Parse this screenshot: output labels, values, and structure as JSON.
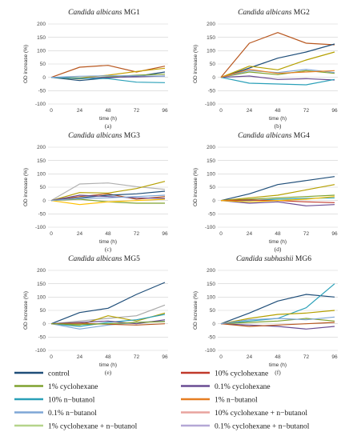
{
  "chart_data": {
    "type": "line",
    "x": [
      0,
      24,
      48,
      72,
      96
    ],
    "xticks": [
      "0",
      "24",
      "48",
      "72",
      "96"
    ],
    "yticks": [
      "200",
      "150",
      "100",
      "50",
      "0",
      "-50",
      "-100"
    ],
    "ylim": [
      -100,
      200
    ],
    "grid": true,
    "legend_position": "bottom",
    "legend": [
      {
        "name": "control",
        "color": "#1f4e79"
      },
      {
        "name": "10% cyclohexane",
        "color": "#c0392b"
      },
      {
        "name": "1% cyclohexane",
        "color": "#7fa22f"
      },
      {
        "name": "0.1% cyclohexane",
        "color": "#6a4c93"
      },
      {
        "name": "10% n−butanol",
        "color": "#2aa0b8"
      },
      {
        "name": "1% n−butanol",
        "color": "#e67e22"
      },
      {
        "name": "0.1% n−butanol",
        "color": "#7ea6d6"
      },
      {
        "name": "10% cyclohexane + n−butanol",
        "color": "#e8a39e"
      },
      {
        "name": "1% cyclohexane + n−butanol",
        "color": "#b5d48a"
      },
      {
        "name": "0.1% cyclohexane + n−butanol",
        "color": "#b4a7d6"
      }
    ],
    "panels": [
      {
        "title_italic": "Candida albicans",
        "title_plain": " MG1",
        "xlabel": "time (h)",
        "ylabel": "OD increase (%)",
        "label": "(a)",
        "series": [
          {
            "color": "#b8571f",
            "values": [
              0,
              38,
              45,
              20,
              42
            ]
          },
          {
            "color": "#c8a000",
            "values": [
              0,
              -2,
              8,
              22,
              34
            ]
          },
          {
            "color": "#1f4e79",
            "values": [
              0,
              -12,
              -2,
              4,
              20
            ]
          },
          {
            "color": "#7fa22f",
            "values": [
              0,
              -6,
              2,
              8,
              12
            ]
          },
          {
            "color": "#6a4c93",
            "values": [
              0,
              -4,
              0,
              2,
              5
            ]
          },
          {
            "color": "#2aa0b8",
            "values": [
              0,
              -3,
              -5,
              -18,
              -20
            ]
          },
          {
            "color": "#7ea6d6",
            "values": [
              0,
              4,
              6,
              6,
              4
            ]
          }
        ]
      },
      {
        "title_italic": "Candida albicans",
        "title_plain": " MG2",
        "xlabel": "time (h)",
        "ylabel": "OD increase (%)",
        "label": "(b)",
        "series": [
          {
            "color": "#b8571f",
            "values": [
              0,
              128,
              168,
              128,
              122
            ]
          },
          {
            "color": "#1f4e79",
            "values": [
              0,
              35,
              72,
              95,
              125
            ]
          },
          {
            "color": "#b5a000",
            "values": [
              0,
              42,
              28,
              65,
              95
            ]
          },
          {
            "color": "#7fa22f",
            "values": [
              0,
              20,
              10,
              25,
              15
            ]
          },
          {
            "color": "#7ea6d6",
            "values": [
              0,
              25,
              18,
              30,
              18
            ]
          },
          {
            "color": "#6a4c93",
            "values": [
              0,
              5,
              -8,
              -5,
              -10
            ]
          },
          {
            "color": "#2aa0b8",
            "values": [
              0,
              -22,
              -25,
              -28,
              -8
            ]
          },
          {
            "color": "#e67e22",
            "values": [
              0,
              30,
              15,
              20,
              25
            ]
          }
        ]
      },
      {
        "title_italic": "Candida albicans",
        "title_plain": " MG3",
        "xlabel": "time (h)",
        "ylabel": "OD increase (%)",
        "label": "(c)",
        "series": [
          {
            "color": "#b0b0b0",
            "values": [
              0,
              62,
              66,
              52,
              42
            ]
          },
          {
            "color": "#b5a000",
            "values": [
              0,
              30,
              28,
              45,
              72
            ]
          },
          {
            "color": "#b8571f",
            "values": [
              0,
              15,
              25,
              5,
              15
            ]
          },
          {
            "color": "#1f4e79",
            "values": [
              0,
              10,
              20,
              25,
              35
            ]
          },
          {
            "color": "#7fa22f",
            "values": [
              0,
              5,
              -5,
              -10,
              -10
            ]
          },
          {
            "color": "#ffc000",
            "values": [
              0,
              -15,
              -5,
              0,
              5
            ]
          },
          {
            "color": "#6a4c93",
            "values": [
              0,
              20,
              15,
              10,
              8
            ]
          },
          {
            "color": "#7ea6d6",
            "values": [
              0,
              8,
              10,
              15,
              20
            ]
          }
        ]
      },
      {
        "title_italic": "Candida albicans",
        "title_plain": " MG4",
        "xlabel": "time (h)",
        "ylabel": "OD increase (%)",
        "label": "(d)",
        "series": [
          {
            "color": "#1f4e79",
            "values": [
              0,
              25,
              60,
              75,
              90
            ]
          },
          {
            "color": "#b5a000",
            "values": [
              0,
              10,
              20,
              40,
              60
            ]
          },
          {
            "color": "#7fa22f",
            "values": [
              0,
              5,
              10,
              15,
              20
            ]
          },
          {
            "color": "#2aa0b8",
            "values": [
              0,
              0,
              5,
              8,
              10
            ]
          },
          {
            "color": "#6a4c93",
            "values": [
              0,
              -10,
              -5,
              -20,
              -15
            ]
          },
          {
            "color": "#c0392b",
            "values": [
              0,
              2,
              0,
              -5,
              -8
            ]
          },
          {
            "color": "#ffc000",
            "values": [
              0,
              -5,
              0,
              5,
              15
            ]
          }
        ]
      },
      {
        "title_italic": "Candida albicans",
        "title_plain": " MG5",
        "xlabel": "time (h)",
        "ylabel": "OD increase (%)",
        "label": "(e)",
        "series": [
          {
            "color": "#1f4e79",
            "values": [
              0,
              42,
              58,
              110,
              155
            ]
          },
          {
            "color": "#a9a9a9",
            "values": [
              0,
              10,
              20,
              30,
              70
            ]
          },
          {
            "color": "#b5a000",
            "values": [
              0,
              -5,
              30,
              10,
              40
            ]
          },
          {
            "color": "#2aa0b8",
            "values": [
              0,
              -10,
              5,
              15,
              35
            ]
          },
          {
            "color": "#7ea6d6",
            "values": [
              0,
              -20,
              -5,
              5,
              10
            ]
          },
          {
            "color": "#6a4c93",
            "values": [
              0,
              5,
              10,
              0,
              15
            ]
          },
          {
            "color": "#b8571f",
            "values": [
              0,
              2,
              -2,
              -5,
              0
            ]
          },
          {
            "color": "#7fa22f",
            "values": [
              0,
              -3,
              0,
              5,
              8
            ]
          }
        ]
      },
      {
        "title_italic": "Candida subhashii",
        "title_plain": " MG6",
        "xlabel": "time (h)",
        "ylabel": "OD increase (%)",
        "label": "(f)",
        "series": [
          {
            "color": "#1f4e79",
            "values": [
              0,
              40,
              85,
              110,
              100
            ]
          },
          {
            "color": "#2aa0b8",
            "values": [
              0,
              10,
              20,
              60,
              150
            ]
          },
          {
            "color": "#b5a000",
            "values": [
              0,
              20,
              35,
              40,
              50
            ]
          },
          {
            "color": "#7fa22f",
            "values": [
              0,
              5,
              10,
              20,
              10
            ]
          },
          {
            "color": "#6a4c93",
            "values": [
              0,
              -5,
              -10,
              -20,
              -10
            ]
          },
          {
            "color": "#b8571f",
            "values": [
              0,
              -10,
              -5,
              0,
              5
            ]
          },
          {
            "color": "#7ea6d6",
            "values": [
              0,
              15,
              20,
              15,
              25
            ]
          }
        ]
      }
    ]
  }
}
